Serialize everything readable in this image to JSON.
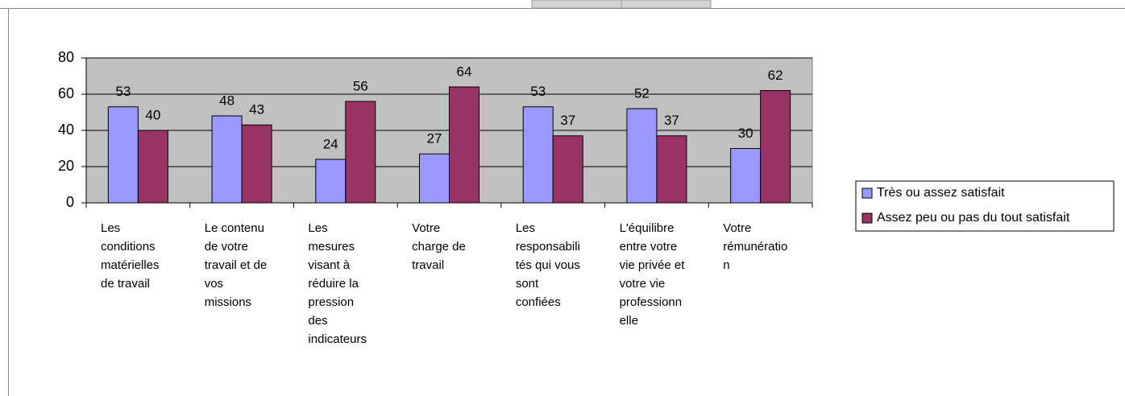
{
  "chart_data": {
    "type": "bar",
    "categories": [
      "Les conditions matérielles de travail",
      "Le contenu de votre travail et de vos missions",
      "Les mesures visant à réduire la pression des indicateurs",
      "Votre charge de travail",
      "Les responsabilités qui vous sont confiées",
      "L'équilibre entre votre vie privée et votre vie professionnelle",
      "Votre rémunération"
    ],
    "series": [
      {
        "name": "Très ou assez satisfait",
        "color": "#9999ff",
        "values": [
          53,
          48,
          24,
          27,
          53,
          52,
          30
        ]
      },
      {
        "name": "Assez peu ou pas du tout satisfait",
        "color": "#993366",
        "values": [
          40,
          43,
          56,
          64,
          37,
          37,
          62
        ]
      }
    ],
    "ylim": [
      0,
      80
    ],
    "yticks": [
      0,
      20,
      40,
      60,
      80
    ],
    "grid": true,
    "legend": "right"
  }
}
